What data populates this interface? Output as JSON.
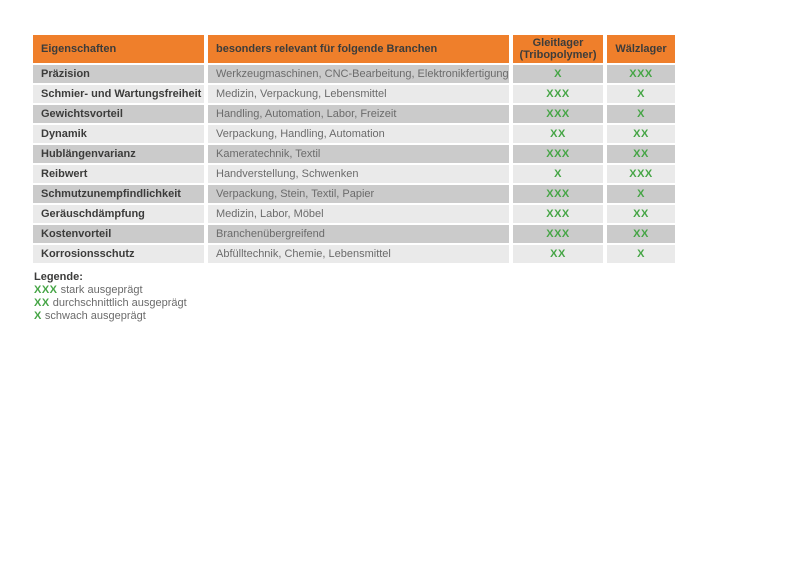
{
  "colors": {
    "header_bg": "#EF7F2B",
    "row_dark": "#CBCBCB",
    "row_light": "#EAEAEA",
    "text_dark": "#3C3C3B",
    "text_gray": "#6B6B6B",
    "rating_green": "#46A546"
  },
  "table": {
    "headers": [
      "Eigenschaften",
      "besonders relevant für folgende Branchen",
      "Gleitlager (Tribopolymer)",
      "Wälzlager"
    ],
    "rows": [
      {
        "property": "Präzision",
        "branches": "Werkzeugmaschinen, CNC-Bearbeitung, Elektronikfertigung",
        "gleitlager": "X",
        "waelzlager": "XXX"
      },
      {
        "property": "Schmier- und Wartungsfreiheit",
        "branches": "Medizin, Verpackung, Lebensmittel",
        "gleitlager": "XXX",
        "waelzlager": "X"
      },
      {
        "property": "Gewichtsvorteil",
        "branches": "Handling, Automation, Labor, Freizeit",
        "gleitlager": "XXX",
        "waelzlager": "X"
      },
      {
        "property": "Dynamik",
        "branches": "Verpackung, Handling, Automation",
        "gleitlager": "XX",
        "waelzlager": "XX"
      },
      {
        "property": "Hublängenvarianz",
        "branches": "Kameratechnik, Textil",
        "gleitlager": "XXX",
        "waelzlager": "XX"
      },
      {
        "property": "Reibwert",
        "branches": "Handverstellung, Schwenken",
        "gleitlager": "X",
        "waelzlager": "XXX"
      },
      {
        "property": "Schmutzunempfindlichkeit",
        "branches": "Verpackung, Stein, Textil, Papier",
        "gleitlager": "XXX",
        "waelzlager": "X"
      },
      {
        "property": "Geräuschdämpfung",
        "branches": "Medizin, Labor, Möbel",
        "gleitlager": "XXX",
        "waelzlager": "XX"
      },
      {
        "property": "Kostenvorteil",
        "branches": "Branchenübergreifend",
        "gleitlager": "XXX",
        "waelzlager": "XX"
      },
      {
        "property": "Korrosionsschutz",
        "branches": "Abfülltechnik, Chemie, Lebensmittel",
        "gleitlager": "XX",
        "waelzlager": "X"
      }
    ]
  },
  "legend": {
    "title": "Legende:",
    "items": [
      {
        "symbol": "XXX",
        "label": "stark ausgeprägt"
      },
      {
        "symbol": "XX",
        "label": "durchschnittlich ausgeprägt"
      },
      {
        "symbol": "X",
        "label": "schwach ausgeprägt"
      }
    ]
  }
}
